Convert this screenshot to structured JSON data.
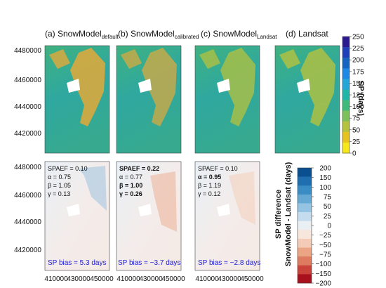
{
  "panel_titles": [
    {
      "main": "(a) SnowModel",
      "sub": "default"
    },
    {
      "main": "(b) SnowModel",
      "sub": "calibrated"
    },
    {
      "main": "(c) SnowModel",
      "sub": "Landsat"
    },
    {
      "main": "(d) Landsat",
      "sub": ""
    }
  ],
  "y_tick_labels": [
    "4480000",
    "4460000",
    "4440000",
    "4420000"
  ],
  "x_tick_labels": [
    "410000",
    "430000",
    "450000"
  ],
  "stats": [
    {
      "spaef": "SPAEF = 0.10",
      "alpha": "α = 0.75",
      "beta": "β = 1.05",
      "gamma": "γ = 0.13",
      "bias": "SP bias = 5.3 days"
    },
    {
      "spaef": "SPAEF = 0.22",
      "alpha": "α = 0.77",
      "beta": "β = 1.00",
      "gamma": "γ = 0.26",
      "bias": "SP bias = −3.7 days"
    },
    {
      "spaef": "SPAEF = 0.10",
      "alpha": "α = 0.95",
      "beta": "β = 1.19",
      "gamma": "γ = 0.12",
      "bias": "SP bias = −2.8 days"
    }
  ],
  "colorbar_top": {
    "title": "SP (days)",
    "ticks": [
      "250",
      "225",
      "200",
      "175",
      "150",
      "125",
      "100",
      "75",
      "50",
      "25",
      "0"
    ],
    "colors": [
      "#2b1a8f",
      "#1f3fb8",
      "#1565c0",
      "#1e88e5",
      "#26a6d8",
      "#1fb5a8",
      "#3fba7a",
      "#7cc05a",
      "#b5c23e",
      "#e8c21e",
      "#f7e81a"
    ]
  },
  "colorbar_bottom": {
    "title": "SP difference",
    "subtitle": "SnowModel - Landsat (days)",
    "ticks": [
      "200",
      "150",
      "100",
      "75",
      "50",
      "25",
      "0",
      "−25",
      "−50",
      "−75",
      "−100",
      "−150",
      "−200"
    ],
    "colors": [
      "#0a4f8f",
      "#1f6fb0",
      "#3a8cc4",
      "#65a9d4",
      "#94c4e2",
      "#c4dcee",
      "#eaeff4",
      "#f7e6dc",
      "#f4cbb6",
      "#eba585",
      "#dd7a5f",
      "#c9433a",
      "#a8101d"
    ]
  },
  "colors": {
    "map_green": "#4fb37e",
    "map_teal": "#2fa7a3",
    "map_orange": "#e3a93a",
    "map_yellow": "#f0c43a",
    "diff_bg": "#f1ece9",
    "bias_text": "#1a1adb"
  }
}
